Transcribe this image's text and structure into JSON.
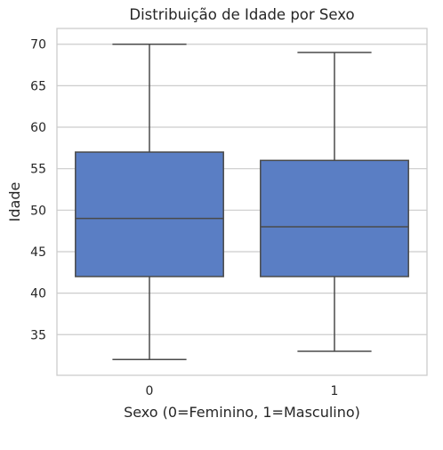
{
  "chart_data": {
    "type": "boxplot",
    "title": "Distribuição de Idade por Sexo",
    "xlabel": "Sexo (0=Feminino, 1=Masculino)",
    "ylabel": "Idade",
    "categories": [
      "0",
      "1"
    ],
    "boxes": [
      {
        "category": "0",
        "whisker_low": 32,
        "q1": 42,
        "median": 49,
        "q3": 57,
        "whisker_high": 70
      },
      {
        "category": "1",
        "whisker_low": 33,
        "q1": 42,
        "median": 48,
        "q3": 56,
        "whisker_high": 69
      }
    ],
    "yticks": [
      35,
      40,
      45,
      50,
      55,
      60,
      65,
      70
    ],
    "ylim": [
      30.1,
      71.9
    ],
    "grid": true,
    "colors": {
      "box_fill": "#5a7ec4",
      "line": "#4a4a4a",
      "grid": "#cccccc",
      "spine": "#cccccc"
    }
  }
}
